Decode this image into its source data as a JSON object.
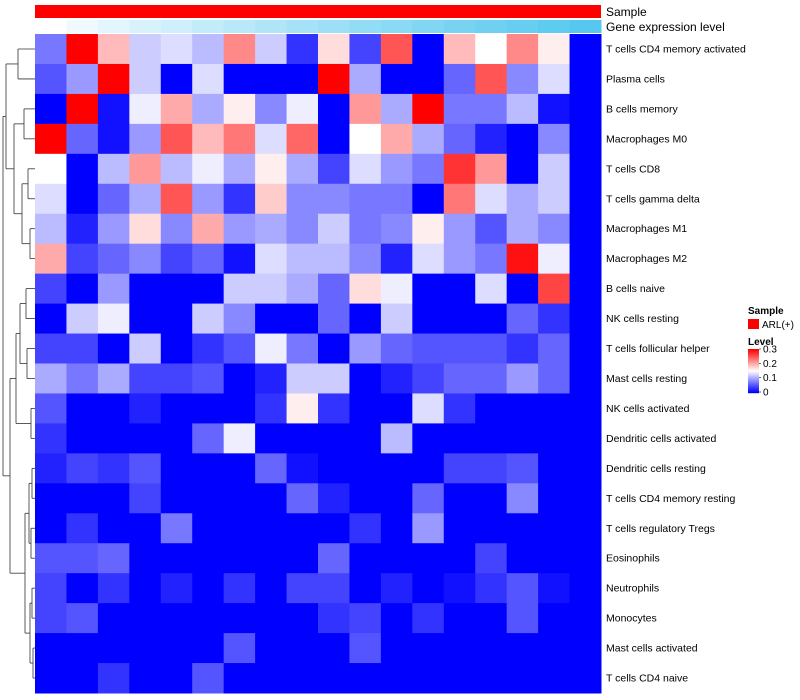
{
  "chart_data": {
    "type": "heatmap",
    "title": "",
    "annotations": [
      {
        "name": "Sample",
        "color": "#ff0000"
      },
      {
        "name": "Gene expression level",
        "gradient": [
          "#ffffff",
          "#56c8f0"
        ]
      }
    ],
    "rows": [
      "T cells CD4 memory activated",
      "Plasma cells",
      "B cells memory",
      "Macrophages M0",
      "T cells CD8",
      "T cells gamma delta",
      "Macrophages M1",
      "Macrophages M2",
      "B cells naive",
      "NK cells resting",
      "T cells follicular helper",
      "Mast cells resting",
      "NK cells activated",
      "Dendritic cells activated",
      "Dendritic cells resting",
      "T cells CD4 memory resting",
      "T cells regulatory  Tregs",
      "Eosinophils",
      "Neutrophils",
      "Monocytes",
      "Mast cells activated",
      "T cells CD4 naive"
    ],
    "n_columns": 18,
    "values": [
      [
        0.07,
        0.31,
        0.19,
        0.12,
        0.13,
        0.11,
        0.22,
        0.12,
        0.03,
        0.17,
        0.04,
        0.25,
        0.0,
        0.19,
        0.15,
        0.22,
        0.16,
        0.0
      ],
      [
        0.05,
        0.09,
        0.31,
        0.12,
        0.0,
        0.13,
        0.0,
        0.0,
        0.0,
        0.31,
        0.1,
        0.0,
        0.0,
        0.06,
        0.25,
        0.08,
        0.13,
        0.0
      ],
      [
        0.0,
        0.32,
        0.01,
        0.14,
        0.2,
        0.1,
        0.16,
        0.08,
        0.14,
        0.0,
        0.21,
        0.1,
        0.33,
        0.07,
        0.07,
        0.11,
        0.01,
        0.0
      ],
      [
        0.32,
        0.06,
        0.01,
        0.09,
        0.25,
        0.19,
        0.23,
        0.13,
        0.24,
        0.0,
        0.15,
        0.2,
        0.1,
        0.06,
        0.02,
        0.0,
        0.08,
        0.0
      ],
      [
        0.15,
        0.0,
        0.11,
        0.21,
        0.11,
        0.14,
        0.1,
        0.16,
        0.1,
        0.04,
        0.13,
        0.09,
        0.07,
        0.27,
        0.21,
        0.0,
        0.12,
        0.0
      ],
      [
        0.13,
        0.0,
        0.06,
        0.1,
        0.25,
        0.09,
        0.03,
        0.18,
        0.08,
        0.08,
        0.07,
        0.07,
        0.0,
        0.23,
        0.13,
        0.1,
        0.12,
        0.0
      ],
      [
        0.11,
        0.02,
        0.09,
        0.17,
        0.08,
        0.2,
        0.09,
        0.1,
        0.08,
        0.12,
        0.07,
        0.08,
        0.16,
        0.09,
        0.05,
        0.1,
        0.08,
        0.0
      ],
      [
        0.2,
        0.04,
        0.06,
        0.08,
        0.04,
        0.06,
        0.01,
        0.13,
        0.11,
        0.11,
        0.08,
        0.02,
        0.13,
        0.09,
        0.07,
        0.29,
        0.14,
        0.0
      ],
      [
        0.04,
        0.0,
        0.09,
        0.0,
        0.0,
        0.0,
        0.12,
        0.12,
        0.1,
        0.06,
        0.17,
        0.14,
        0.0,
        0.0,
        0.13,
        0.0,
        0.26,
        0.0
      ],
      [
        0.0,
        0.12,
        0.14,
        0.0,
        0.0,
        0.12,
        0.08,
        0.0,
        0.0,
        0.06,
        0.0,
        0.12,
        0.0,
        0.0,
        0.0,
        0.06,
        0.03,
        0.0
      ],
      [
        0.04,
        0.04,
        0.0,
        0.12,
        0.0,
        0.03,
        0.05,
        0.14,
        0.07,
        0.0,
        0.09,
        0.06,
        0.05,
        0.05,
        0.05,
        0.03,
        0.06,
        0.0
      ],
      [
        0.1,
        0.07,
        0.1,
        0.04,
        0.04,
        0.05,
        0.0,
        0.02,
        0.12,
        0.12,
        0.0,
        0.02,
        0.04,
        0.06,
        0.06,
        0.09,
        0.06,
        0.0
      ],
      [
        0.05,
        0.0,
        0.0,
        0.02,
        0.0,
        0.0,
        0.0,
        0.03,
        0.16,
        0.03,
        0.0,
        0.0,
        0.13,
        0.03,
        0.0,
        0.0,
        0.0,
        0.0
      ],
      [
        0.03,
        0.0,
        0.0,
        0.0,
        0.0,
        0.06,
        0.14,
        0.0,
        0.0,
        0.0,
        0.0,
        0.11,
        0.0,
        0.0,
        0.0,
        0.0,
        0.0,
        0.0
      ],
      [
        0.02,
        0.04,
        0.03,
        0.05,
        0.0,
        0.0,
        0.0,
        0.06,
        0.01,
        0.0,
        0.0,
        0.0,
        0.0,
        0.04,
        0.04,
        0.05,
        0.0,
        0.0
      ],
      [
        0.0,
        0.0,
        0.0,
        0.04,
        0.0,
        0.0,
        0.0,
        0.0,
        0.06,
        0.02,
        0.0,
        0.0,
        0.06,
        0.0,
        0.0,
        0.08,
        0.0,
        0.0
      ],
      [
        0.0,
        0.03,
        0.0,
        0.0,
        0.07,
        0.0,
        0.0,
        0.0,
        0.0,
        0.0,
        0.03,
        0.0,
        0.09,
        0.0,
        0.0,
        0.0,
        0.0,
        0.0
      ],
      [
        0.05,
        0.05,
        0.06,
        0.0,
        0.0,
        0.0,
        0.0,
        0.0,
        0.0,
        0.06,
        0.0,
        0.0,
        0.0,
        0.0,
        0.04,
        0.0,
        0.0,
        0.0
      ],
      [
        0.04,
        0.0,
        0.03,
        0.0,
        0.02,
        0.0,
        0.03,
        0.0,
        0.04,
        0.04,
        0.0,
        0.02,
        0.0,
        0.01,
        0.03,
        0.05,
        0.01,
        0.0
      ],
      [
        0.04,
        0.05,
        0.0,
        0.0,
        0.0,
        0.0,
        0.0,
        0.0,
        0.0,
        0.03,
        0.04,
        0.0,
        0.03,
        0.0,
        0.0,
        0.05,
        0.0,
        0.0
      ],
      [
        0.0,
        0.0,
        0.0,
        0.0,
        0.0,
        0.0,
        0.05,
        0.0,
        0.0,
        0.0,
        0.05,
        0.0,
        0.0,
        0.0,
        0.0,
        0.0,
        0.0,
        0.0
      ],
      [
        0.0,
        0.0,
        0.03,
        0.0,
        0.0,
        0.05,
        0.0,
        0.0,
        0.0,
        0.0,
        0.0,
        0.0,
        0.0,
        0.0,
        0.0,
        0.0,
        0.0,
        0.0
      ]
    ],
    "color_scale": {
      "min": 0,
      "max": 0.3,
      "low": "#0000ff",
      "mid": "#ffffff",
      "high": "#ff0000"
    },
    "legend": {
      "sample_title": "Sample",
      "sample_entry": "ARL(+)",
      "sample_color": "#ff0000",
      "level_title": "Level",
      "ticks": [
        "0.3",
        "0.2",
        "0.1",
        "0"
      ]
    }
  }
}
